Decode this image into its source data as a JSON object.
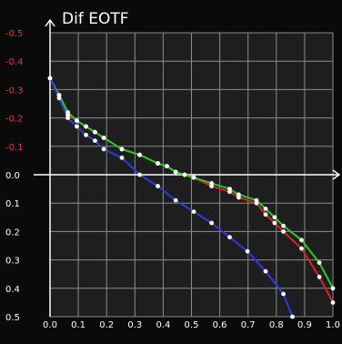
{
  "chart_data": {
    "type": "line",
    "title": "Dif EOTF",
    "xlabel": "",
    "ylabel": "",
    "xlim": [
      0.0,
      1.0
    ],
    "ylim": [
      -0.5,
      0.5
    ],
    "y_axis_inverted": true,
    "grid": true,
    "x_ticks": [
      "0.0",
      "0.1",
      "0.2",
      "0.3",
      "0.4",
      "0.5",
      "0.6",
      "0.7",
      "0.8",
      "0.9",
      "1.0"
    ],
    "y_ticks": [
      "-0.5",
      "-0.4",
      "-0.3",
      "-0.2",
      "-0.1",
      "0.0",
      "0.1",
      "0.2",
      "0.3",
      "0.4",
      "0.5"
    ],
    "y_tick_colors": [
      "#d83a3a",
      "#d83a3a",
      "#d83a3a",
      "#d83a3a",
      "#d83a3a",
      "#ffffff",
      "#ffffff",
      "#ffffff",
      "#ffffff",
      "#ffffff",
      "#ffffff"
    ],
    "colors": {
      "background": "#1e1e1e",
      "outer": "#0a0a0a",
      "grid": "#8c8c8c",
      "axis": "#ffffff",
      "marker": "#ffffff"
    },
    "series": [
      {
        "color": "#e02020",
        "x": [
          0.0,
          0.032,
          0.063,
          0.095,
          0.127,
          0.159,
          0.19,
          0.254,
          0.317,
          0.381,
          0.413,
          0.444,
          0.476,
          0.508,
          0.571,
          0.635,
          0.667,
          0.73,
          0.762,
          0.794,
          0.825,
          0.889,
          0.952,
          1.0
        ],
        "y": [
          -0.34,
          -0.28,
          -0.21,
          -0.19,
          -0.17,
          -0.15,
          -0.13,
          -0.09,
          -0.07,
          -0.04,
          -0.03,
          -0.01,
          0.0,
          0.01,
          0.04,
          0.06,
          0.08,
          0.1,
          0.14,
          0.17,
          0.2,
          0.26,
          0.36,
          0.45
        ]
      },
      {
        "color": "#20d020",
        "x": [
          0.0,
          0.032,
          0.063,
          0.095,
          0.127,
          0.159,
          0.19,
          0.254,
          0.317,
          0.381,
          0.413,
          0.444,
          0.476,
          0.508,
          0.571,
          0.635,
          0.667,
          0.73,
          0.762,
          0.794,
          0.825,
          0.889,
          0.952,
          1.0
        ],
        "y": [
          -0.34,
          -0.28,
          -0.22,
          -0.19,
          -0.17,
          -0.15,
          -0.13,
          -0.09,
          -0.07,
          -0.04,
          -0.03,
          -0.01,
          0.0,
          0.01,
          0.03,
          0.05,
          0.07,
          0.09,
          0.12,
          0.15,
          0.18,
          0.23,
          0.31,
          0.4
        ]
      },
      {
        "color": "#2a3ae8",
        "x": [
          0.0,
          0.032,
          0.063,
          0.095,
          0.127,
          0.159,
          0.19,
          0.254,
          0.317,
          0.381,
          0.444,
          0.508,
          0.571,
          0.635,
          0.698,
          0.762,
          0.825,
          0.857
        ],
        "y": [
          -0.34,
          -0.27,
          -0.2,
          -0.17,
          -0.14,
          -0.12,
          -0.09,
          -0.06,
          0.0,
          0.04,
          0.09,
          0.13,
          0.17,
          0.22,
          0.27,
          0.34,
          0.42,
          0.5
        ]
      }
    ]
  }
}
